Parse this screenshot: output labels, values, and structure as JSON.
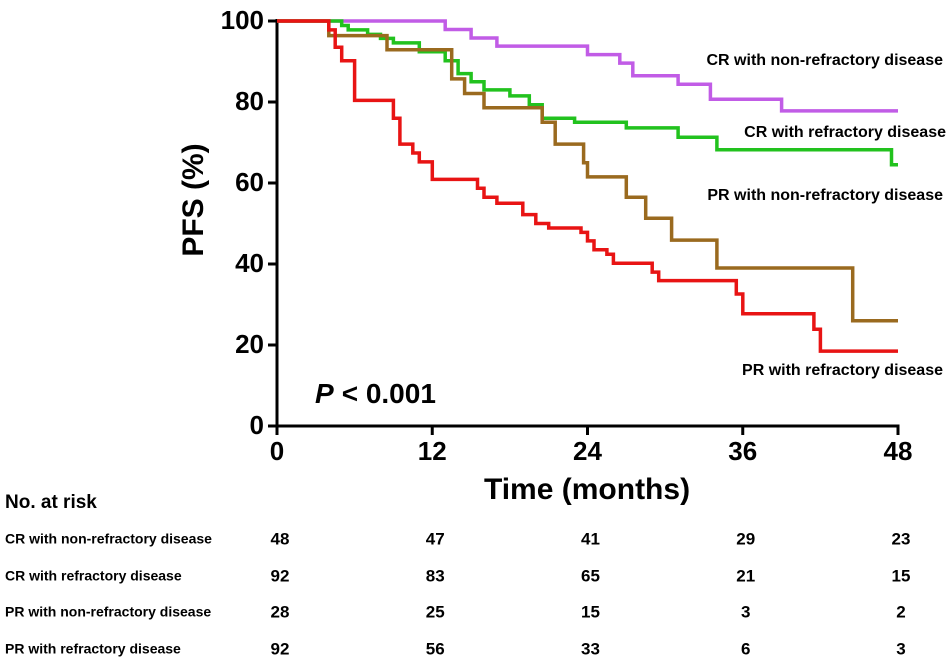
{
  "chart_data": {
    "type": "line",
    "step": true,
    "xlabel": "Time (months)",
    "ylabel": "PFS (%)",
    "xlim": [
      0,
      48
    ],
    "xticks": [
      0,
      12,
      24,
      36,
      48
    ],
    "ylim": [
      0,
      100
    ],
    "yticks": [
      0,
      20,
      40,
      60,
      80,
      100
    ],
    "annotation": {
      "italic": "P",
      "text": "< 0.001"
    },
    "series": [
      {
        "name": "CR with non-refractory disease",
        "color": "#c15ce6",
        "x": [
          0,
          13,
          15,
          17,
          24,
          26.5,
          27.5,
          31,
          33.5,
          39,
          48
        ],
        "values": [
          100,
          97.9,
          95.8,
          93.8,
          91.7,
          89.6,
          86.5,
          84.4,
          80.7,
          77.8,
          77.8
        ]
      },
      {
        "name": "CR with refractory disease",
        "color": "#22c21e",
        "x": [
          0,
          5,
          5.5,
          7,
          8,
          9,
          11,
          13,
          14,
          15,
          16,
          18,
          19.5,
          20.5,
          23,
          27,
          31,
          34,
          47.5,
          48
        ],
        "values": [
          100,
          98.9,
          97.8,
          96.7,
          95.7,
          94.6,
          92.4,
          90.2,
          87,
          85,
          83,
          81.5,
          79.3,
          76,
          75,
          73.6,
          71.3,
          68.2,
          64.5,
          64.5
        ]
      },
      {
        "name": "PR with non-refractory disease",
        "color": "#9a6a1f",
        "x": [
          0,
          4,
          8.5,
          13.5,
          14.5,
          16,
          20.5,
          21.5,
          23.7,
          24,
          27,
          28.5,
          30.5,
          34,
          44.5,
          48
        ],
        "values": [
          100,
          96.4,
          92.9,
          85.7,
          82.1,
          78.6,
          75,
          69.6,
          65,
          61.5,
          56.5,
          51.3,
          45.9,
          39,
          26,
          26
        ]
      },
      {
        "name": "PR with refractory disease",
        "color": "#e81414",
        "x": [
          0,
          4,
          4.5,
          5,
          6,
          9,
          9.5,
          10.5,
          11,
          12,
          15.5,
          16,
          17,
          19,
          20,
          21,
          23.5,
          24,
          24.5,
          25.5,
          26,
          29,
          29.5,
          35.5,
          36,
          41.5,
          42,
          48
        ],
        "values": [
          100,
          97.8,
          93.5,
          90.2,
          80.4,
          76,
          69.6,
          67.4,
          65.2,
          60.9,
          58.7,
          56.5,
          55,
          52.2,
          50,
          48.9,
          47.8,
          45.7,
          43.5,
          42.4,
          40.2,
          38,
          35.9,
          32.6,
          27.7,
          23.9,
          18.5,
          18.5
        ]
      }
    ],
    "risk_table": {
      "title": "No. at risk",
      "rows": [
        {
          "name": "CR with non-refractory disease",
          "values": [
            48,
            47,
            41,
            29,
            23
          ]
        },
        {
          "name": "CR with refractory disease",
          "values": [
            92,
            83,
            65,
            21,
            15
          ]
        },
        {
          "name": "PR with non-refractory disease",
          "values": [
            28,
            25,
            15,
            3,
            2
          ]
        },
        {
          "name": "PR with refractory disease",
          "values": [
            92,
            56,
            33,
            6,
            3
          ]
        }
      ]
    }
  }
}
